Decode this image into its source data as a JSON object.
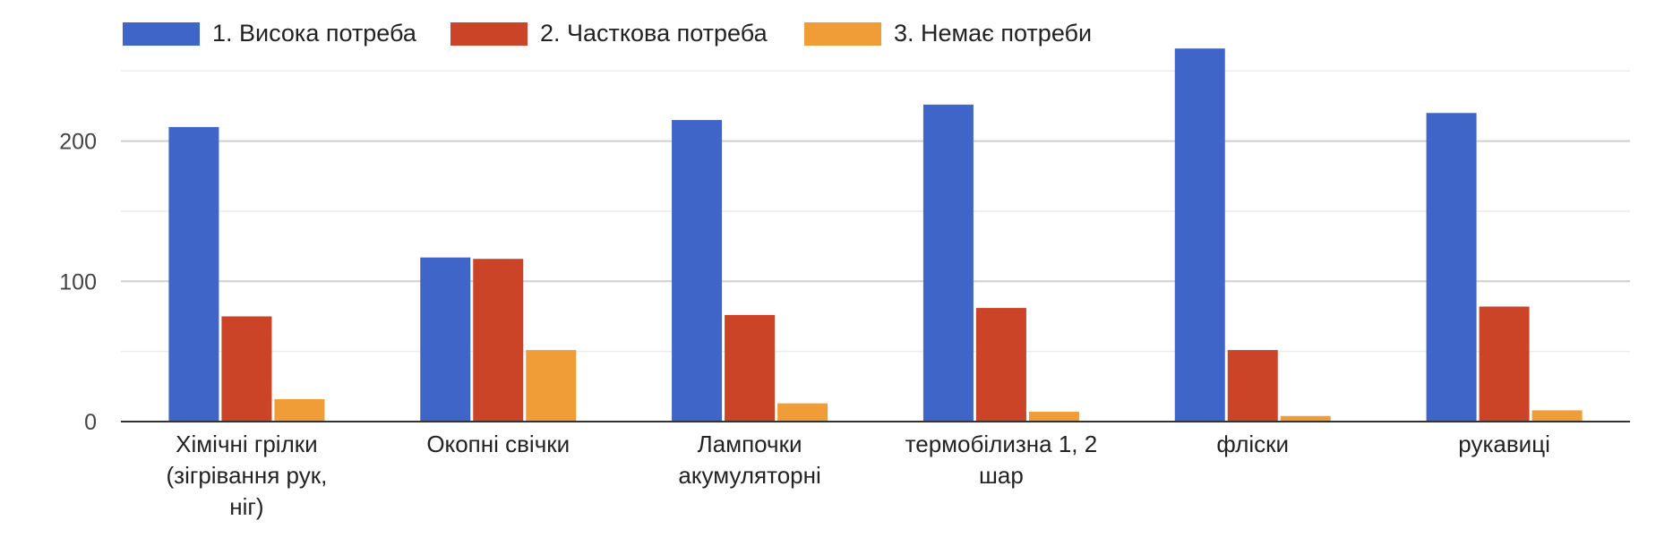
{
  "chart_data": {
    "type": "bar",
    "categories": [
      [
        "Хімічні грілки",
        "(зігрівання рук,",
        "ніг)"
      ],
      [
        "Окопні свічки"
      ],
      [
        "Лампочки",
        "акумуляторні"
      ],
      [
        "термобілизна 1, 2",
        "шар"
      ],
      [
        "фліски"
      ],
      [
        "рукавиці"
      ]
    ],
    "series": [
      {
        "name": "1. Висока потреба",
        "color": "#3f65c8",
        "values": [
          210,
          117,
          215,
          226,
          266,
          220
        ]
      },
      {
        "name": "2. Часткова потреба",
        "color": "#cc4428",
        "values": [
          75,
          116,
          76,
          81,
          51,
          82
        ]
      },
      {
        "name": "3. Немає потреби",
        "color": "#f09d38",
        "values": [
          16,
          51,
          13,
          7,
          4,
          8
        ]
      }
    ],
    "yticks": [
      "0",
      "100",
      "200"
    ],
    "ylim": [
      0,
      250
    ],
    "grid": true,
    "legend_position": "top-left"
  }
}
